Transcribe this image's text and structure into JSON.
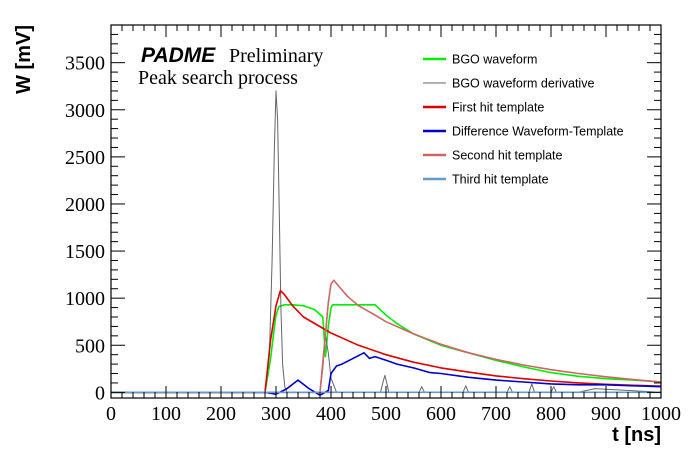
{
  "chart_data": {
    "type": "line",
    "xlabel": "t [ns]",
    "ylabel": "W [mV]",
    "xlim": [
      0,
      1000
    ],
    "ylim": [
      -60,
      3900
    ],
    "x_ticks": [
      0,
      100,
      200,
      300,
      400,
      500,
      600,
      700,
      800,
      900,
      1000
    ],
    "y_ticks": [
      0,
      500,
      1000,
      1500,
      2000,
      2500,
      3000,
      3500
    ],
    "grid": false,
    "legend_position": "top-right",
    "annotations": {
      "brand": "PADME",
      "tag": "Preliminary",
      "subtitle": "Peak search process"
    },
    "series": [
      {
        "name": "BGO waveform",
        "color": "#00ee00",
        "x": [
          0,
          280,
          290,
          295,
          300,
          305,
          310,
          315,
          320,
          330,
          350,
          370,
          385,
          390,
          395,
          400,
          403,
          410,
          430,
          450,
          480,
          500,
          520,
          550,
          600,
          650,
          700,
          750,
          800,
          850,
          900,
          950,
          1000
        ],
        "y": [
          0,
          0,
          350,
          600,
          820,
          910,
          920,
          930,
          930,
          930,
          920,
          880,
          800,
          380,
          700,
          900,
          930,
          930,
          930,
          930,
          930,
          820,
          730,
          620,
          500,
          420,
          340,
          270,
          210,
          170,
          145,
          130,
          110
        ]
      },
      {
        "name": "BGO waveform derivative",
        "color": "#666666",
        "x": [
          0,
          280,
          288,
          293,
          297,
          300,
          303,
          306,
          309,
          312,
          316,
          320,
          380,
          385,
          390,
          395,
          400,
          410,
          490,
          495,
          498,
          501,
          505,
          560,
          565,
          570,
          640,
          645,
          650,
          700,
          720,
          725,
          730,
          760,
          765,
          770,
          800,
          805,
          810,
          850,
          880,
          1000
        ],
        "y": [
          0,
          0,
          400,
          1400,
          2600,
          3200,
          2900,
          1900,
          900,
          300,
          60,
          0,
          0,
          250,
          600,
          420,
          150,
          0,
          0,
          120,
          180,
          110,
          0,
          0,
          60,
          0,
          0,
          70,
          0,
          0,
          0,
          60,
          0,
          0,
          90,
          0,
          0,
          60,
          0,
          0,
          40,
          0
        ]
      },
      {
        "name": "First hit template",
        "color": "#dd0000",
        "x": [
          0,
          280,
          290,
          300,
          308,
          315,
          330,
          350,
          400,
          450,
          500,
          550,
          600,
          650,
          700,
          750,
          800,
          850,
          900,
          950,
          1000
        ],
        "y": [
          0,
          0,
          550,
          920,
          1080,
          1040,
          920,
          800,
          630,
          500,
          400,
          320,
          260,
          215,
          175,
          145,
          120,
          100,
          85,
          75,
          65
        ]
      },
      {
        "name": "Difference Waveform-Template",
        "color": "#0000cc",
        "x": [
          0,
          280,
          300,
          320,
          340,
          360,
          380,
          395,
          400,
          410,
          420,
          440,
          460,
          470,
          480,
          500,
          520,
          550,
          580,
          600,
          650,
          700,
          750,
          800,
          850,
          900,
          950,
          1000
        ],
        "y": [
          0,
          0,
          -20,
          40,
          130,
          40,
          -30,
          20,
          200,
          280,
          300,
          360,
          420,
          360,
          380,
          340,
          300,
          260,
          210,
          200,
          160,
          130,
          110,
          90,
          80,
          80,
          70,
          60
        ]
      },
      {
        "name": "Second hit template",
        "color": "#cc6666",
        "x": [
          0,
          380,
          388,
          395,
          400,
          405,
          415,
          430,
          450,
          480,
          500,
          550,
          600,
          650,
          700,
          750,
          800,
          850,
          900,
          950,
          1000
        ],
        "y": [
          0,
          0,
          500,
          950,
          1150,
          1190,
          1120,
          1020,
          920,
          820,
          750,
          620,
          510,
          420,
          350,
          290,
          240,
          200,
          165,
          135,
          110
        ]
      },
      {
        "name": "Third hit template",
        "color": "#6699cc",
        "x": [
          0,
          1000
        ],
        "y": [
          0,
          0
        ]
      }
    ]
  }
}
